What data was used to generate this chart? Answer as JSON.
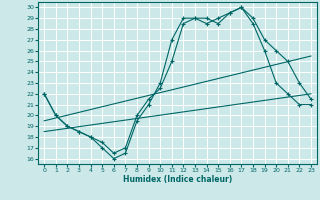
{
  "xlabel": "Humidex (Indice chaleur)",
  "bg_color": "#cce8e8",
  "grid_color": "#ffffff",
  "line_color": "#006666",
  "xlim": [
    -0.5,
    23.5
  ],
  "ylim": [
    15.5,
    30.5
  ],
  "xticks": [
    0,
    1,
    2,
    3,
    4,
    5,
    6,
    7,
    8,
    9,
    10,
    11,
    12,
    13,
    14,
    15,
    16,
    17,
    18,
    19,
    20,
    21,
    22,
    23
  ],
  "yticks": [
    16,
    17,
    18,
    19,
    20,
    21,
    22,
    23,
    24,
    25,
    26,
    27,
    28,
    29,
    30
  ],
  "line1_x": [
    0,
    1,
    2,
    3,
    4,
    5,
    6,
    7,
    8,
    9,
    10,
    11,
    12,
    13,
    14,
    15,
    16,
    17,
    18,
    19,
    20,
    21,
    22,
    23
  ],
  "line1_y": [
    22,
    20,
    19,
    18.5,
    18,
    17,
    16,
    16.5,
    19.5,
    21,
    23,
    27,
    29,
    29,
    29,
    28.5,
    29.5,
    30,
    29,
    27,
    26,
    25,
    23,
    21.5
  ],
  "line2_x": [
    0,
    1,
    2,
    3,
    4,
    5,
    6,
    7,
    8,
    9,
    10,
    11,
    12,
    13,
    14,
    15,
    16,
    17,
    18,
    19,
    20,
    21,
    22,
    23
  ],
  "line2_y": [
    22,
    20,
    19,
    18.5,
    18,
    17.5,
    16.5,
    17,
    20,
    21.5,
    22.5,
    25,
    28.5,
    29,
    28.5,
    29,
    29.5,
    30,
    28.5,
    26,
    23,
    22,
    21,
    21
  ],
  "line3_x": [
    0,
    23
  ],
  "line3_y": [
    19.5,
    25.5
  ],
  "line4_x": [
    0,
    23
  ],
  "line4_y": [
    18.5,
    22
  ]
}
